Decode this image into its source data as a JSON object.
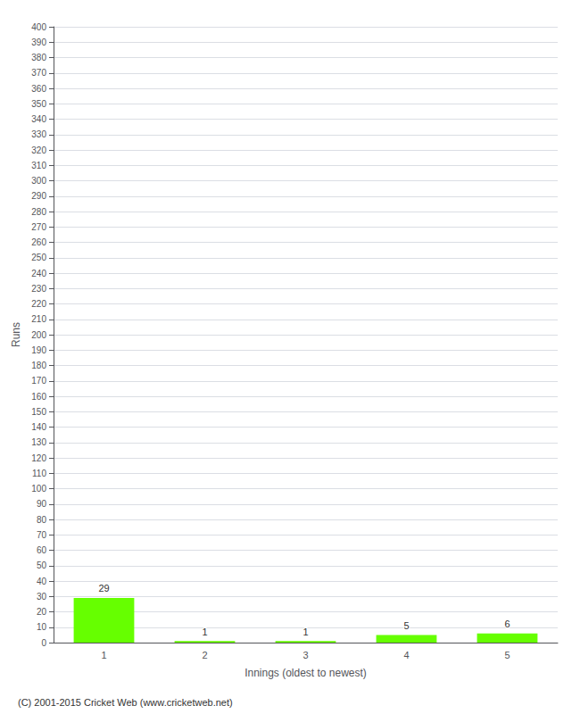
{
  "chart_data": {
    "type": "bar",
    "categories": [
      1,
      2,
      3,
      4,
      5
    ],
    "values": [
      29,
      1,
      1,
      5,
      6
    ],
    "color": "#66ff00",
    "xlabel": "Innings (oldest to newest)",
    "ylabel": "Runs",
    "ylim": [
      0,
      400
    ],
    "yticks": [
      0,
      10,
      20,
      30,
      40,
      50,
      60,
      70,
      80,
      90,
      100,
      110,
      120,
      130,
      140,
      150,
      160,
      170,
      180,
      190,
      200,
      210,
      220,
      230,
      240,
      250,
      260,
      270,
      280,
      290,
      300,
      310,
      320,
      330,
      340,
      350,
      360,
      370,
      380,
      390,
      400
    ],
    "grid": true,
    "data_labels": true,
    "annotations": [
      "(C) 2001-2015 Cricket Web (www.cricketweb.net)"
    ]
  }
}
